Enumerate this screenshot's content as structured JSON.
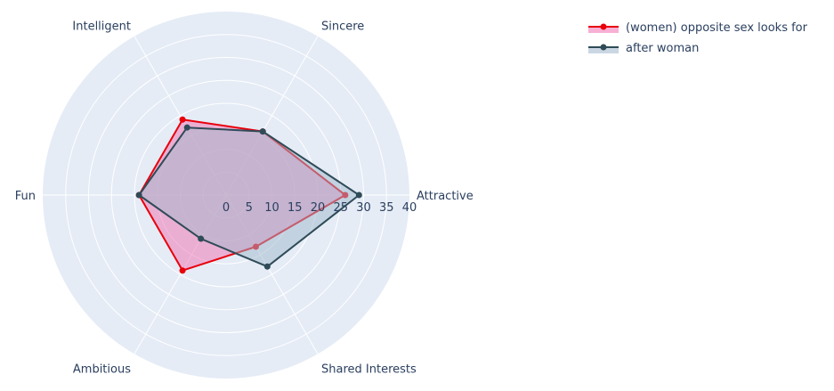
{
  "chart_data": {
    "type": "radar",
    "axes": [
      "Attractive",
      "Sincere",
      "Intelligent",
      "Fun",
      "Ambitious",
      "Shared Interests"
    ],
    "radial_range": [
      0,
      40
    ],
    "radial_ticks": [
      "0",
      "5",
      "10",
      "15",
      "20",
      "25",
      "30",
      "35",
      "40"
    ],
    "grid": true,
    "legend_position": "top-right",
    "series": [
      {
        "name": "(women) opposite sex looks for",
        "values": [
          26,
          16,
          19,
          19,
          19,
          13
        ],
        "line_color": "#e8000b",
        "fill_color": "#f06fb0"
      },
      {
        "name": "after woman",
        "values": [
          29,
          16,
          17,
          19,
          11,
          18
        ],
        "line_color": "#2f4b57",
        "fill_color": "#9fb7cc"
      }
    ]
  }
}
